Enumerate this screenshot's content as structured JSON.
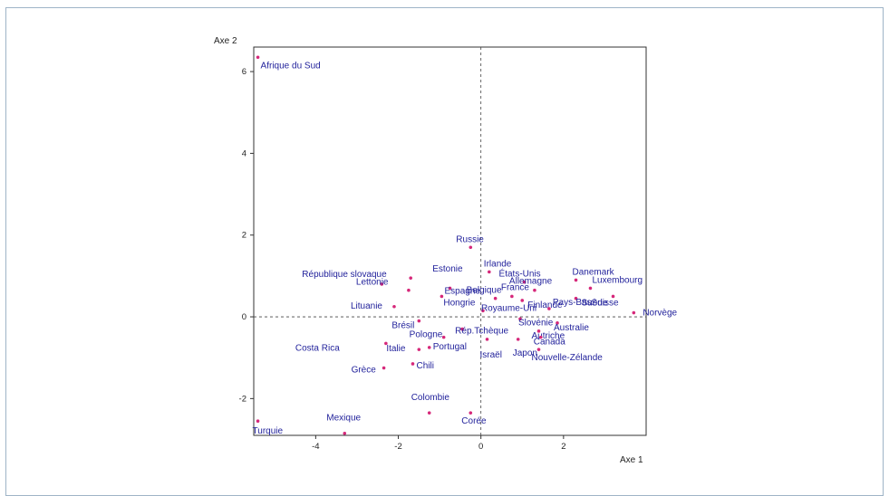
{
  "chart_data": {
    "type": "scatter",
    "xlabel": "Axe 1",
    "ylabel": "Axe 2",
    "xlim": [
      -5.5,
      4
    ],
    "ylim": [
      -2.9,
      6.6
    ],
    "xticks": [
      -4,
      -2,
      0,
      2
    ],
    "yticks": [
      -2,
      0,
      2,
      4,
      6
    ],
    "grid": false,
    "reference_lines": "dashed at x=0 and y=0",
    "point_color": "#d6287a",
    "label_color": "#1f1f9a",
    "points": [
      {
        "label": "Afrique du Sud",
        "x": -5.4,
        "y": 6.35
      },
      {
        "label": "Russie",
        "x": -0.25,
        "y": 1.7
      },
      {
        "label": "Irlande",
        "x": 0.2,
        "y": 1.1
      },
      {
        "label": "République slovaque",
        "x": -2.4,
        "y": 0.8
      },
      {
        "label": "Lettonie",
        "x": -1.75,
        "y": 0.65
      },
      {
        "label": "Estonie",
        "x": -1.7,
        "y": 0.95
      },
      {
        "label": "États-Unis",
        "x": 1.05,
        "y": 0.85
      },
      {
        "label": "Danemark",
        "x": 2.3,
        "y": 0.9
      },
      {
        "label": "France",
        "x": 0.75,
        "y": 0.5
      },
      {
        "label": "Allemagne",
        "x": 1.3,
        "y": 0.65
      },
      {
        "label": "Luxembourg",
        "x": 2.65,
        "y": 0.7
      },
      {
        "label": "Belgique",
        "x": 0.35,
        "y": 0.45
      },
      {
        "label": "Finlande",
        "x": 1.0,
        "y": 0.4
      },
      {
        "label": "Suède",
        "x": 2.3,
        "y": 0.45
      },
      {
        "label": "Espagne",
        "x": -0.75,
        "y": 0.7
      },
      {
        "label": "Hongrie",
        "x": -0.95,
        "y": 0.5
      },
      {
        "label": "Lituanie",
        "x": -2.1,
        "y": 0.25
      },
      {
        "label": "Royaume-Uni",
        "x": 0.05,
        "y": 0.15
      },
      {
        "label": "Pays-Bas",
        "x": 1.65,
        "y": 0.2
      },
      {
        "label": "Suisse",
        "x": 3.2,
        "y": 0.5
      },
      {
        "label": "Norvège",
        "x": 3.7,
        "y": 0.1
      },
      {
        "label": "Rép.Tchèque",
        "x": -0.45,
        "y": -0.3
      },
      {
        "label": "Brésil",
        "x": -1.5,
        "y": -0.1
      },
      {
        "label": "Slovénie",
        "x": 0.95,
        "y": -0.05
      },
      {
        "label": "Australie",
        "x": 1.85,
        "y": -0.15
      },
      {
        "label": "Autriche",
        "x": 1.4,
        "y": -0.35
      },
      {
        "label": "Pologne",
        "x": -0.9,
        "y": -0.5
      },
      {
        "label": "Canada",
        "x": 1.45,
        "y": -0.5
      },
      {
        "label": "Costa Rica",
        "x": -2.3,
        "y": -0.65
      },
      {
        "label": "Italie",
        "x": -1.5,
        "y": -0.8
      },
      {
        "label": "Portugal",
        "x": -1.25,
        "y": -0.75
      },
      {
        "label": "Israël",
        "x": 0.15,
        "y": -0.55
      },
      {
        "label": "Japon",
        "x": 0.9,
        "y": -0.55
      },
      {
        "label": "Nouvelle-Zélande",
        "x": 1.4,
        "y": -0.8
      },
      {
        "label": "Chili",
        "x": -1.65,
        "y": -1.15
      },
      {
        "label": "Grèce",
        "x": -2.35,
        "y": -1.25
      },
      {
        "label": "Colombie",
        "x": -1.25,
        "y": -2.35
      },
      {
        "label": "Corée",
        "x": -0.25,
        "y": -2.35
      },
      {
        "label": "Mexique",
        "x": -3.3,
        "y": -2.85
      },
      {
        "label": "Turquie",
        "x": -5.4,
        "y": -2.55
      }
    ]
  }
}
